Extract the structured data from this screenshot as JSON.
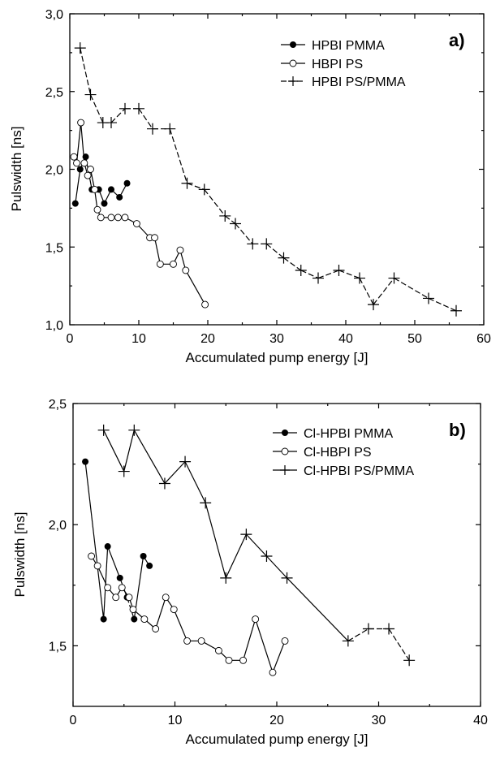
{
  "chart_data": [
    {
      "type": "line",
      "panel_label": "a)",
      "xlabel": "Accumulated pump energy [J]",
      "ylabel": "Pulswidth [ns]",
      "xlim": [
        0,
        60
      ],
      "ylim": [
        1.0,
        3.0
      ],
      "xticks": [
        "0",
        "10",
        "20",
        "30",
        "40",
        "50",
        "60"
      ],
      "yticks": [
        "1,0",
        "1,5",
        "2,0",
        "2,5",
        "3,0"
      ],
      "legend_position": "top-right",
      "series": [
        {
          "name": "HPBI PMMA",
          "marker": "filled-circle",
          "x": [
            0.8,
            1.5,
            2.3,
            3.2,
            4.2,
            5.0,
            6.0,
            7.2,
            8.3
          ],
          "y": [
            1.78,
            2.0,
            2.08,
            1.87,
            1.87,
            1.78,
            1.87,
            1.82,
            1.91
          ]
        },
        {
          "name": "HBPI PS",
          "marker": "open-circle",
          "x": [
            0.6,
            1.0,
            1.6,
            2.1,
            2.6,
            3.0,
            3.6,
            4.0,
            4.5,
            6.0,
            7.0,
            8.0,
            9.7,
            11.6,
            12.3,
            13.1,
            15.0,
            16.0,
            16.8,
            19.6
          ],
          "y": [
            2.08,
            2.04,
            2.3,
            2.04,
            1.96,
            2.0,
            1.87,
            1.74,
            1.69,
            1.69,
            1.69,
            1.69,
            1.65,
            1.56,
            1.56,
            1.39,
            1.39,
            1.48,
            1.35,
            1.13
          ]
        },
        {
          "name": "HPBI PS/PMMA",
          "marker": "plus",
          "dashed": true,
          "x": [
            1.5,
            3.0,
            4.8,
            6.0,
            8.0,
            10.0,
            12.0,
            14.5,
            17.0,
            19.5,
            22.5,
            24.0,
            26.5,
            28.5,
            31.0,
            33.5,
            36.0,
            39.0,
            42.0,
            44.0,
            47.0,
            52.0,
            56.0
          ],
          "y": [
            2.78,
            2.48,
            2.3,
            2.3,
            2.39,
            2.39,
            2.26,
            2.26,
            1.91,
            1.87,
            1.7,
            1.65,
            1.52,
            1.52,
            1.43,
            1.35,
            1.3,
            1.35,
            1.3,
            1.13,
            1.3,
            1.17,
            1.09
          ]
        }
      ]
    },
    {
      "type": "line",
      "panel_label": "b)",
      "xlabel": "Accumulated pump energy [J]",
      "ylabel": "Pulswidth [ns]",
      "xlim": [
        0,
        40
      ],
      "ylim": [
        1.25,
        2.5
      ],
      "xticks": [
        "0",
        "10",
        "20",
        "30",
        "40"
      ],
      "yticks": [
        "1,5",
        "2,0",
        "2,5"
      ],
      "legend_position": "top-right",
      "series": [
        {
          "name": "Cl-HPBI PMMA",
          "marker": "filled-circle",
          "x": [
            1.2,
            3.0,
            3.4,
            4.6,
            5.3,
            6.0,
            6.9,
            7.5
          ],
          "y": [
            2.26,
            1.61,
            1.91,
            1.78,
            1.7,
            1.61,
            1.87,
            1.83
          ],
          "dashed_segments": [
            [
              4,
              5
            ]
          ]
        },
        {
          "name": "Cl-HBPI PS",
          "marker": "open-circle",
          "x": [
            1.8,
            2.4,
            3.4,
            4.2,
            4.8,
            5.5,
            5.9,
            7.0,
            8.1,
            9.1,
            9.9,
            11.2,
            12.6,
            14.3,
            15.3,
            16.7,
            17.9,
            19.6,
            20.8
          ],
          "y": [
            1.87,
            1.83,
            1.74,
            1.7,
            1.74,
            1.7,
            1.65,
            1.61,
            1.57,
            1.7,
            1.65,
            1.52,
            1.52,
            1.48,
            1.44,
            1.44,
            1.61,
            1.39,
            1.52
          ]
        },
        {
          "name": "Cl-HPBI PS/PMMA",
          "marker": "plus",
          "x": [
            3.0,
            5.0,
            6.0,
            9.0,
            11.0,
            13.0,
            15.0,
            17.0,
            19.0,
            21.0,
            27.0,
            29.0,
            31.0,
            33.0
          ],
          "y": [
            2.39,
            2.22,
            2.39,
            2.17,
            2.26,
            2.09,
            1.78,
            1.96,
            1.87,
            1.78,
            1.52,
            1.57,
            1.57,
            1.44
          ],
          "dashed_segments": [
            [
              10,
              11
            ],
            [
              11,
              12
            ],
            [
              12,
              13
            ]
          ]
        }
      ]
    }
  ]
}
